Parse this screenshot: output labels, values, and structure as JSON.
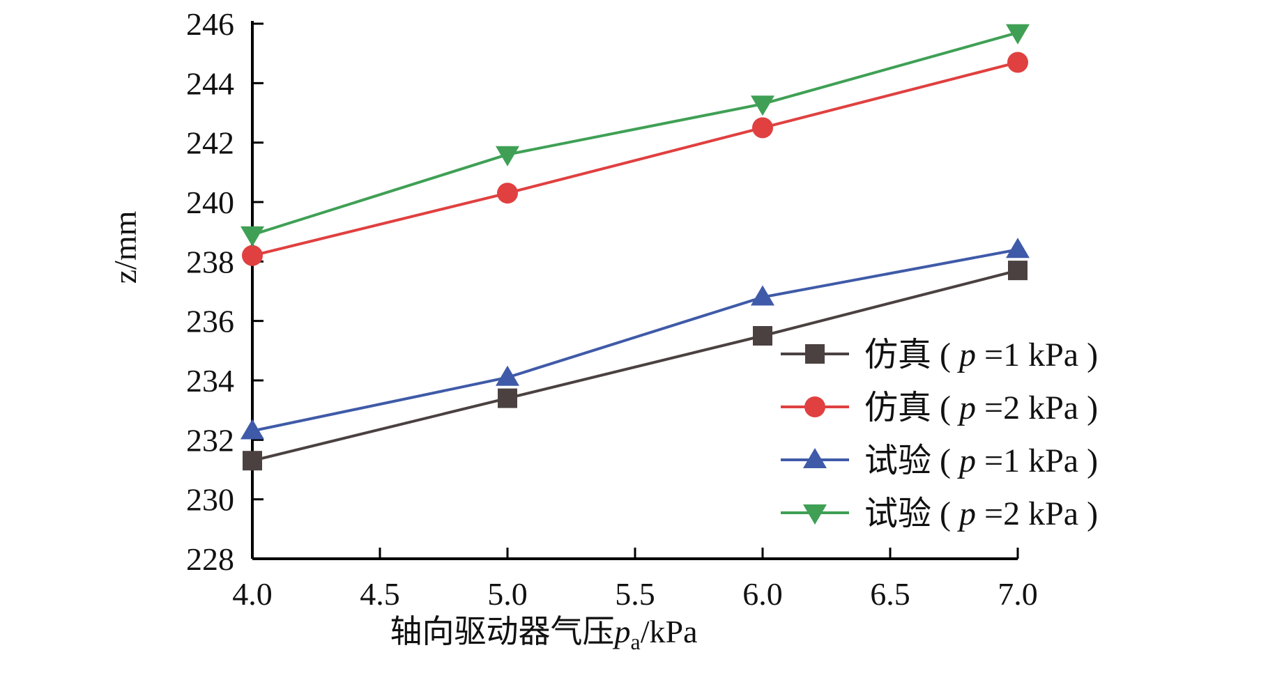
{
  "chart_data": {
    "type": "line",
    "title": "",
    "xlabel": "轴向驱动器气压",
    "xlabel_var": "p",
    "xlabel_sub": "a",
    "xlabel_unit": "/kPa",
    "ylabel": "z/mm",
    "xlim": [
      4.0,
      7.0
    ],
    "ylim": [
      228,
      246
    ],
    "x_ticks": [
      4.0,
      4.5,
      5.0,
      5.5,
      6.0,
      6.5,
      7.0
    ],
    "x_tick_labels": [
      "4.0",
      "4.5",
      "5.0",
      "5.5",
      "6.0",
      "6.5",
      "7.0"
    ],
    "y_ticks": [
      228,
      230,
      232,
      234,
      236,
      238,
      240,
      242,
      244,
      246
    ],
    "y_tick_labels": [
      "228",
      "230",
      "232",
      "234",
      "236",
      "238",
      "240",
      "242",
      "244",
      "246"
    ],
    "grid": false,
    "legend_position": "center-right",
    "x": [
      4.0,
      5.0,
      6.0,
      7.0
    ],
    "series": [
      {
        "name": "仿真 ( p =1 kPa )",
        "label_prefix": "仿真 ( ",
        "label_var": "p",
        "label_suffix": " =1 kPa )",
        "color": "#4a4140",
        "marker": "square",
        "values": [
          231.3,
          233.4,
          235.5,
          237.7
        ]
      },
      {
        "name": "仿真 ( p =2 kPa )",
        "label_prefix": "仿真 ( ",
        "label_var": "p",
        "label_suffix": " =2 kPa )",
        "color": "#e04040",
        "marker": "circle",
        "values": [
          238.2,
          240.3,
          242.5,
          244.7
        ]
      },
      {
        "name": "试验 ( p =1 kPa )",
        "label_prefix": "试验 ( ",
        "label_var": "p",
        "label_suffix": " =1 kPa )",
        "color": "#3f5aa8",
        "marker": "triangle-up",
        "values": [
          232.3,
          234.1,
          236.8,
          238.4
        ]
      },
      {
        "name": "试验 ( p =2 kPa )",
        "label_prefix": "试验 ( ",
        "label_var": "p",
        "label_suffix": " =2 kPa )",
        "color": "#3fa055",
        "marker": "triangle-down",
        "values": [
          238.9,
          241.6,
          243.3,
          245.7
        ]
      }
    ]
  }
}
